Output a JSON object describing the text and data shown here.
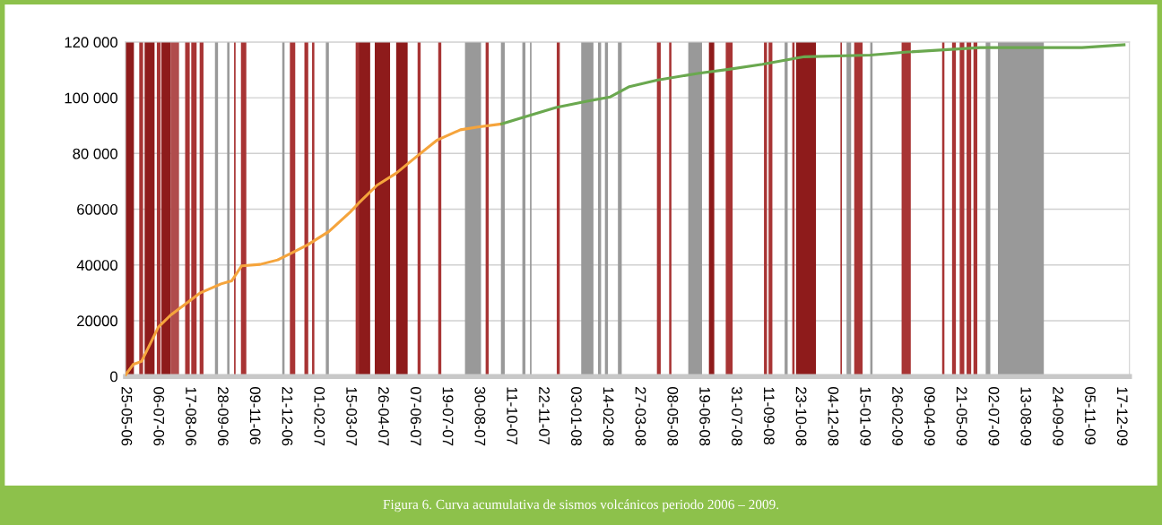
{
  "chart_data": {
    "type": "line",
    "annotations": [
      "Figura 6. Curva acumulativa de sismos volcánicos periodo 2006 – 2009."
    ],
    "xlim": [
      "2006-05-25",
      "2009-12-28"
    ],
    "xticks": [
      {
        "value": "2006-05-25",
        "label": "25-05-06"
      },
      {
        "value": "2006-07-06",
        "label": "06-07-06"
      },
      {
        "value": "2006-08-17",
        "label": "17-08-06"
      },
      {
        "value": "2006-09-28",
        "label": "28-09-06"
      },
      {
        "value": "2006-11-09",
        "label": "09-11-06"
      },
      {
        "value": "2006-12-21",
        "label": "21-12-06"
      },
      {
        "value": "2007-02-01",
        "label": "01-02-07"
      },
      {
        "value": "2007-03-15",
        "label": "15-03-07"
      },
      {
        "value": "2007-04-26",
        "label": "26-04-07"
      },
      {
        "value": "2007-06-07",
        "label": "07-06-07"
      },
      {
        "value": "2007-07-19",
        "label": "19-07-07"
      },
      {
        "value": "2007-08-30",
        "label": "30-08-07"
      },
      {
        "value": "2007-10-11",
        "label": "11-10-07"
      },
      {
        "value": "2007-11-22",
        "label": "22-11-07"
      },
      {
        "value": "2008-01-03",
        "label": "03-01-08"
      },
      {
        "value": "2008-02-14",
        "label": "14-02-08"
      },
      {
        "value": "2008-03-27",
        "label": "27-03-08"
      },
      {
        "value": "2008-05-08",
        "label": "08-05-08"
      },
      {
        "value": "2008-06-19",
        "label": "19-06-08"
      },
      {
        "value": "2008-07-31",
        "label": "31-07-08"
      },
      {
        "value": "2008-09-11",
        "label": "11-09-08"
      },
      {
        "value": "2008-10-23",
        "label": "23-10-08"
      },
      {
        "value": "2008-12-04",
        "label": "04-12-08"
      },
      {
        "value": "2009-01-15",
        "label": "15-01-09"
      },
      {
        "value": "2009-02-26",
        "label": "26-02-09"
      },
      {
        "value": "2009-04-09",
        "label": "09-04-09"
      },
      {
        "value": "2009-05-21",
        "label": "21-05-09"
      },
      {
        "value": "2009-07-02",
        "label": "02-07-09"
      },
      {
        "value": "2009-08-13",
        "label": "13-08-09"
      },
      {
        "value": "2009-09-24",
        "label": "24-09-09"
      },
      {
        "value": "2009-11-05",
        "label": "05-11-09"
      },
      {
        "value": "2009-12-17",
        "label": "17-12-09"
      }
    ],
    "ylim": [
      0,
      120000
    ],
    "yticks": [
      0,
      20000,
      40000,
      60000,
      {
        "value": 80000,
        "label": "80 000"
      },
      {
        "value": 100000,
        "label": "100 000"
      },
      {
        "value": 120000,
        "label": "120 000"
      }
    ],
    "grid": "y",
    "marker": "none",
    "line_style": "solid",
    "series": [
      {
        "color": "#f5a43c",
        "x": [
          "2006-05-25",
          "2006-06-04",
          "2006-06-15",
          "2006-07-07",
          "2006-07-23",
          "2006-08-10",
          "2006-08-31",
          "2006-09-27",
          "2006-10-11",
          "2006-10-24",
          "2006-11-17",
          "2006-12-10",
          "2006-12-26",
          "2007-01-18",
          "2007-02-15",
          "2007-03-15",
          "2007-03-26",
          "2007-04-19",
          "2007-05-14",
          "2007-06-12",
          "2007-07-06",
          "2007-08-06",
          "2007-08-29",
          "2007-09-29"
        ],
        "values": [
          500,
          4300,
          5400,
          17700,
          22000,
          25700,
          30000,
          33200,
          34300,
          39700,
          40200,
          41800,
          44000,
          47200,
          52000,
          59000,
          62200,
          68600,
          72900,
          79400,
          84700,
          88500,
          89500,
          90600
        ]
      },
      {
        "color": "#6aa84f",
        "x": [
          "2007-09-29",
          "2007-10-31",
          "2007-12-09",
          "2008-01-17",
          "2008-02-18",
          "2008-03-14",
          "2008-04-19",
          "2008-06-13",
          "2008-07-22",
          "2008-09-04",
          "2008-10-29",
          "2009-01-23",
          "2009-03-13",
          "2009-06-16",
          "2009-10-27",
          "2009-12-21"
        ],
        "values": [
          90600,
          93300,
          96500,
          98700,
          100300,
          104000,
          106300,
          108800,
          110200,
          112000,
          114700,
          115300,
          116400,
          118000,
          118000,
          119000
        ]
      }
    ],
    "bands": [
      {
        "axis": "x",
        "from": "2006-05-25",
        "to": "2006-06-05",
        "color": "#8e1b1b"
      },
      {
        "axis": "x",
        "from": "2006-06-12",
        "to": "2006-06-17",
        "color": "#a83434"
      },
      {
        "axis": "x",
        "from": "2006-06-19",
        "to": "2006-07-02",
        "color": "#8e1b1b"
      },
      {
        "axis": "x",
        "from": "2006-07-05",
        "to": "2006-07-10",
        "color": "#a83434"
      },
      {
        "axis": "x",
        "from": "2006-07-11",
        "to": "2006-07-23",
        "color": "#8e1b1b"
      },
      {
        "axis": "x",
        "from": "2006-07-23",
        "to": "2006-08-03",
        "color": "#b04c4c"
      },
      {
        "axis": "x",
        "from": "2006-08-11",
        "to": "2006-08-17",
        "color": "#a83434"
      },
      {
        "axis": "x",
        "from": "2006-08-19",
        "to": "2006-08-26",
        "color": "#a83434"
      },
      {
        "axis": "x",
        "from": "2006-08-30",
        "to": "2006-09-04",
        "color": "#a83434"
      },
      {
        "axis": "x",
        "from": "2006-09-19",
        "to": "2006-09-23",
        "color": "#999999"
      },
      {
        "axis": "x",
        "from": "2006-10-05",
        "to": "2006-10-08",
        "color": "#999999"
      },
      {
        "axis": "x",
        "from": "2006-10-14",
        "to": "2006-10-16",
        "color": "#a83434"
      },
      {
        "axis": "x",
        "from": "2006-10-23",
        "to": "2006-10-30",
        "color": "#a83434"
      },
      {
        "axis": "x",
        "from": "2006-12-16",
        "to": "2006-12-19",
        "color": "#999999"
      },
      {
        "axis": "x",
        "from": "2006-12-26",
        "to": "2007-01-02",
        "color": "#a83434"
      },
      {
        "axis": "x",
        "from": "2007-01-14",
        "to": "2007-01-19",
        "color": "#a83434"
      },
      {
        "axis": "x",
        "from": "2007-01-24",
        "to": "2007-01-27",
        "color": "#a83434"
      },
      {
        "axis": "x",
        "from": "2007-02-11",
        "to": "2007-02-15",
        "color": "#999999"
      },
      {
        "axis": "x",
        "from": "2007-03-22",
        "to": "2007-03-26",
        "color": "#a83434"
      },
      {
        "axis": "x",
        "from": "2007-03-26",
        "to": "2007-04-10",
        "color": "#8e1b1b"
      },
      {
        "axis": "x",
        "from": "2007-04-16",
        "to": "2007-05-06",
        "color": "#8e1b1b"
      },
      {
        "axis": "x",
        "from": "2007-05-14",
        "to": "2007-05-29",
        "color": "#8e1b1b"
      },
      {
        "axis": "x",
        "from": "2007-06-11",
        "to": "2007-06-15",
        "color": "#a83434"
      },
      {
        "axis": "x",
        "from": "2007-07-08",
        "to": "2007-07-12",
        "color": "#a83434"
      },
      {
        "axis": "x",
        "from": "2007-08-12",
        "to": "2007-09-02",
        "color": "#999999"
      },
      {
        "axis": "x",
        "from": "2007-09-08",
        "to": "2007-09-12",
        "color": "#a83434"
      },
      {
        "axis": "x",
        "from": "2007-09-28",
        "to": "2007-10-03",
        "color": "#999999"
      },
      {
        "axis": "x",
        "from": "2007-10-26",
        "to": "2007-10-30",
        "color": "#999999"
      },
      {
        "axis": "x",
        "from": "2007-11-05",
        "to": "2007-11-07",
        "color": "#999999"
      },
      {
        "axis": "x",
        "from": "2007-12-10",
        "to": "2007-12-14",
        "color": "#a83434"
      },
      {
        "axis": "x",
        "from": "2008-01-11",
        "to": "2008-01-27",
        "color": "#999999"
      },
      {
        "axis": "x",
        "from": "2008-02-02",
        "to": "2008-02-06",
        "color": "#999999"
      },
      {
        "axis": "x",
        "from": "2008-02-11",
        "to": "2008-02-15",
        "color": "#999999"
      },
      {
        "axis": "x",
        "from": "2008-02-28",
        "to": "2008-03-04",
        "color": "#999999"
      },
      {
        "axis": "x",
        "from": "2008-04-19",
        "to": "2008-04-24",
        "color": "#a83434"
      },
      {
        "axis": "x",
        "from": "2008-05-05",
        "to": "2008-05-08",
        "color": "#a83434"
      },
      {
        "axis": "x",
        "from": "2008-05-30",
        "to": "2008-06-17",
        "color": "#999999"
      },
      {
        "axis": "x",
        "from": "2008-06-26",
        "to": "2008-07-03",
        "color": "#8e1b1b"
      },
      {
        "axis": "x",
        "from": "2008-07-18",
        "to": "2008-07-27",
        "color": "#a83434"
      },
      {
        "axis": "x",
        "from": "2008-09-06",
        "to": "2008-09-10",
        "color": "#a83434"
      },
      {
        "axis": "x",
        "from": "2008-09-12",
        "to": "2008-09-17",
        "color": "#a83434"
      },
      {
        "axis": "x",
        "from": "2008-10-03",
        "to": "2008-10-07",
        "color": "#999999"
      },
      {
        "axis": "x",
        "from": "2008-10-13",
        "to": "2008-10-16",
        "color": "#a83434"
      },
      {
        "axis": "x",
        "from": "2008-10-18",
        "to": "2008-11-13",
        "color": "#8e1b1b"
      },
      {
        "axis": "x",
        "from": "2008-12-15",
        "to": "2008-12-17",
        "color": "#a83434"
      },
      {
        "axis": "x",
        "from": "2008-12-23",
        "to": "2008-12-29",
        "color": "#999999"
      },
      {
        "axis": "x",
        "from": "2009-01-02",
        "to": "2009-01-13",
        "color": "#a83434"
      },
      {
        "axis": "x",
        "from": "2009-01-23",
        "to": "2009-01-26",
        "color": "#999999"
      },
      {
        "axis": "x",
        "from": "2009-03-05",
        "to": "2009-03-17",
        "color": "#a83434"
      },
      {
        "axis": "x",
        "from": "2009-04-27",
        "to": "2009-04-30",
        "color": "#a83434"
      },
      {
        "axis": "x",
        "from": "2009-05-10",
        "to": "2009-05-15",
        "color": "#a83434"
      },
      {
        "axis": "x",
        "from": "2009-05-20",
        "to": "2009-05-26",
        "color": "#a83434"
      },
      {
        "axis": "x",
        "from": "2009-05-29",
        "to": "2009-06-04",
        "color": "#a83434"
      },
      {
        "axis": "x",
        "from": "2009-06-07",
        "to": "2009-06-12",
        "color": "#a83434"
      },
      {
        "axis": "x",
        "from": "2009-06-23",
        "to": "2009-06-29",
        "color": "#999999"
      },
      {
        "axis": "x",
        "from": "2009-07-09",
        "to": "2009-09-07",
        "color": "#999999"
      }
    ]
  }
}
